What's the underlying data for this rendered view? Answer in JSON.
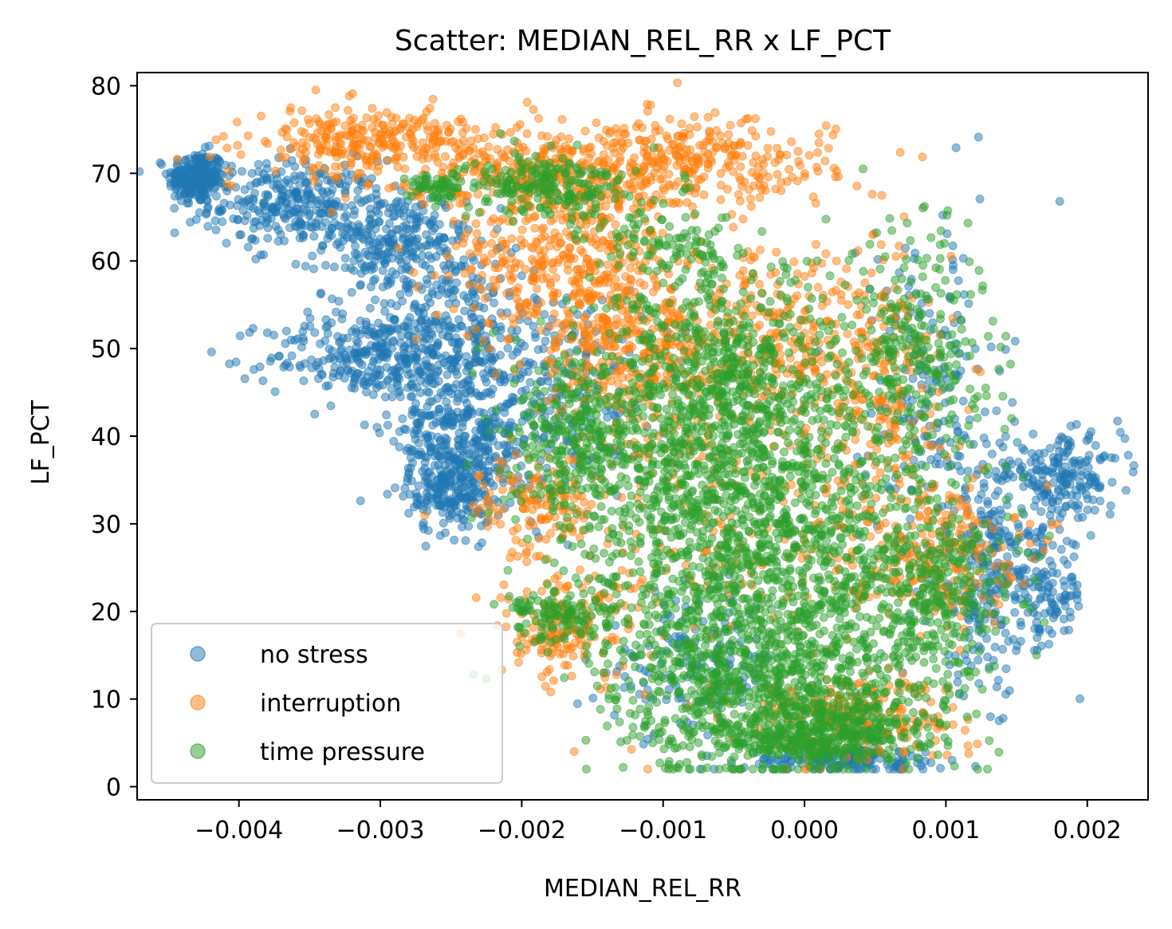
{
  "chart_data": {
    "type": "scatter",
    "title": "Scatter: MEDIAN_REL_RR x LF_PCT",
    "xlabel": "MEDIAN_REL_RR",
    "ylabel": "LF_PCT",
    "xlim": [
      -0.00472,
      0.00243
    ],
    "ylim": [
      -1.5,
      81.5
    ],
    "xticks": [
      -0.004,
      -0.003,
      -0.002,
      -0.001,
      0.0,
      0.001,
      0.002
    ],
    "xtick_labels": [
      "−0.004",
      "−0.003",
      "−0.002",
      "−0.001",
      "0.000",
      "0.001",
      "0.002"
    ],
    "yticks": [
      0,
      10,
      20,
      30,
      40,
      50,
      60,
      70,
      80
    ],
    "ytick_labels": [
      "0",
      "10",
      "20",
      "30",
      "40",
      "50",
      "60",
      "70",
      "80"
    ],
    "grid": false,
    "legend_position": "lower-left",
    "series": [
      {
        "name": "no stress",
        "color": "#1f77b4",
        "regions": [
          {
            "cx": -0.0043,
            "cy": 69.5,
            "sx": 0.0001,
            "sy": 1.5,
            "n": 240
          },
          {
            "cx": -0.0036,
            "cy": 66.5,
            "sx": 0.0003,
            "sy": 2.5,
            "n": 300
          },
          {
            "cx": -0.0029,
            "cy": 62.0,
            "sx": 0.00025,
            "sy": 3.0,
            "n": 260
          },
          {
            "cx": -0.0031,
            "cy": 49.0,
            "sx": 0.00035,
            "sy": 2.5,
            "n": 260
          },
          {
            "cx": -0.0025,
            "cy": 52.0,
            "sx": 0.0003,
            "sy": 4.5,
            "n": 320
          },
          {
            "cx": -0.0024,
            "cy": 40.0,
            "sx": 0.00025,
            "sy": 4.0,
            "n": 320
          },
          {
            "cx": -0.0025,
            "cy": 34.0,
            "sx": 0.00015,
            "sy": 2.5,
            "n": 200
          },
          {
            "cx": -0.0017,
            "cy": 45.0,
            "sx": 0.0003,
            "sy": 6.0,
            "n": 200
          },
          {
            "cx": 0.0003,
            "cy": 3.0,
            "sx": 0.00035,
            "sy": 0.8,
            "n": 160
          },
          {
            "cx": 0.0009,
            "cy": 45.0,
            "sx": 0.00025,
            "sy": 10.0,
            "n": 180
          },
          {
            "cx": 0.0013,
            "cy": 25.0,
            "sx": 0.0002,
            "sy": 7.0,
            "n": 260
          },
          {
            "cx": 0.00185,
            "cy": 35.5,
            "sx": 0.0002,
            "sy": 2.2,
            "n": 180
          },
          {
            "cx": 0.0017,
            "cy": 22.0,
            "sx": 0.00015,
            "sy": 3.5,
            "n": 120
          },
          {
            "cx": -0.0008,
            "cy": 14.0,
            "sx": 0.0003,
            "sy": 4.0,
            "n": 140
          }
        ]
      },
      {
        "name": "interruption",
        "color": "#ff7f0e",
        "regions": [
          {
            "cx": -0.0031,
            "cy": 73.5,
            "sx": 0.0004,
            "sy": 2.0,
            "n": 280
          },
          {
            "cx": -0.0019,
            "cy": 70.0,
            "sx": 0.0004,
            "sy": 3.0,
            "n": 280
          },
          {
            "cx": -0.0008,
            "cy": 71.0,
            "sx": 0.0005,
            "sy": 2.5,
            "n": 320
          },
          {
            "cx": -0.0017,
            "cy": 60.0,
            "sx": 0.0004,
            "sy": 4.5,
            "n": 360
          },
          {
            "cx": -0.0013,
            "cy": 50.0,
            "sx": 0.0003,
            "sy": 4.0,
            "n": 240
          },
          {
            "cx": -0.0003,
            "cy": 52.0,
            "sx": 0.0005,
            "sy": 6.0,
            "n": 300
          },
          {
            "cx": 0.0005,
            "cy": 45.0,
            "sx": 0.0003,
            "sy": 8.0,
            "n": 200
          },
          {
            "cx": 0.0009,
            "cy": 27.0,
            "sx": 0.0003,
            "sy": 4.0,
            "n": 220
          },
          {
            "cx": 0.0003,
            "cy": 8.0,
            "sx": 0.0004,
            "sy": 2.5,
            "n": 240
          },
          {
            "cx": -0.0017,
            "cy": 18.0,
            "sx": 0.00025,
            "sy": 3.0,
            "n": 160
          },
          {
            "cx": -0.0019,
            "cy": 32.0,
            "sx": 0.0002,
            "sy": 3.0,
            "n": 120
          },
          {
            "cx": -0.0006,
            "cy": 35.0,
            "sx": 0.0007,
            "sy": 12.0,
            "n": 300
          }
        ]
      },
      {
        "name": "time pressure",
        "color": "#2ca02c",
        "regions": [
          {
            "cx": -0.0018,
            "cy": 68.5,
            "sx": 0.0003,
            "sy": 1.8,
            "n": 220
          },
          {
            "cx": -0.0026,
            "cy": 68.5,
            "sx": 0.0001,
            "sy": 0.8,
            "n": 60
          },
          {
            "cx": -0.0004,
            "cy": 30.0,
            "sx": 0.0006,
            "sy": 11.0,
            "n": 1600
          },
          {
            "cx": -0.0006,
            "cy": 46.0,
            "sx": 0.0004,
            "sy": 7.0,
            "n": 500
          },
          {
            "cx": -0.0003,
            "cy": 12.0,
            "sx": 0.0005,
            "sy": 5.0,
            "n": 700
          },
          {
            "cx": -0.0016,
            "cy": 40.0,
            "sx": 0.00025,
            "sy": 5.0,
            "n": 300
          },
          {
            "cx": -0.0017,
            "cy": 19.5,
            "sx": 0.0002,
            "sy": 1.5,
            "n": 120
          },
          {
            "cx": 0.0008,
            "cy": 50.0,
            "sx": 0.00025,
            "sy": 7.0,
            "n": 260
          },
          {
            "cx": 0.0009,
            "cy": 22.0,
            "sx": 0.0003,
            "sy": 6.0,
            "n": 360
          },
          {
            "cx": 0.0003,
            "cy": 7.0,
            "sx": 0.0003,
            "sy": 1.5,
            "n": 200
          },
          {
            "cx": -0.001,
            "cy": 62.0,
            "sx": 0.0003,
            "sy": 2.0,
            "n": 80
          },
          {
            "cx": 0.0,
            "cy": 5.0,
            "sx": 0.0004,
            "sy": 1.0,
            "n": 200
          }
        ]
      }
    ]
  }
}
